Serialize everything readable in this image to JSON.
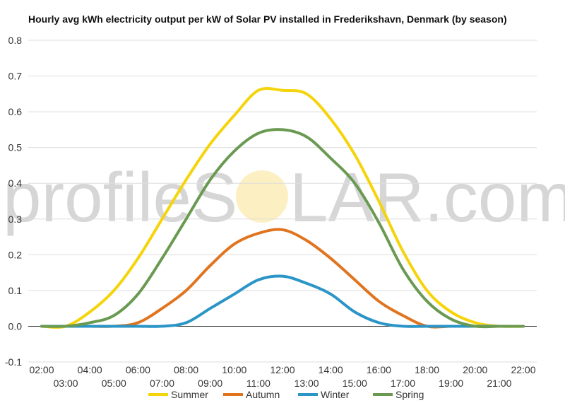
{
  "chart_data": {
    "type": "line",
    "title": "Hourly avg kWh electricity output per kW of Solar PV installed in Frederikshavn, Denmark (by season)",
    "xlabel": "",
    "ylabel": "",
    "ylim": [
      -0.1,
      0.8
    ],
    "yticks": [
      "-0.1",
      "0.0",
      "0.1",
      "0.2",
      "0.3",
      "0.4",
      "0.5",
      "0.6",
      "0.7",
      "0.8"
    ],
    "categories": [
      "02:00",
      "03:00",
      "04:00",
      "05:00",
      "06:00",
      "07:00",
      "08:00",
      "09:00",
      "10:00",
      "11:00",
      "12:00",
      "13:00",
      "14:00",
      "15:00",
      "16:00",
      "17:00",
      "18:00",
      "19:00",
      "20:00",
      "21:00",
      "22:00"
    ],
    "grid": true,
    "legend_position": "bottom",
    "series": [
      {
        "name": "Summer",
        "color": "#f5d40b",
        "values": [
          0,
          0,
          0.04,
          0.1,
          0.19,
          0.3,
          0.41,
          0.51,
          0.59,
          0.66,
          0.66,
          0.65,
          0.58,
          0.48,
          0.35,
          0.21,
          0.1,
          0.04,
          0.01,
          0,
          0
        ]
      },
      {
        "name": "Autumn",
        "color": "#e0741f",
        "values": [
          0,
          0,
          0,
          0,
          0.01,
          0.05,
          0.1,
          0.17,
          0.23,
          0.26,
          0.27,
          0.24,
          0.19,
          0.13,
          0.07,
          0.03,
          0,
          0,
          0,
          0,
          0
        ]
      },
      {
        "name": "Winter",
        "color": "#2a95c6",
        "values": [
          0,
          0,
          0,
          0,
          0,
          0,
          0.01,
          0.05,
          0.09,
          0.13,
          0.14,
          0.12,
          0.09,
          0.04,
          0.01,
          0,
          0,
          0,
          0,
          0,
          0
        ]
      },
      {
        "name": "Spring",
        "color": "#6a9a52",
        "values": [
          0,
          0,
          0.01,
          0.03,
          0.09,
          0.19,
          0.3,
          0.41,
          0.49,
          0.54,
          0.55,
          0.53,
          0.47,
          0.4,
          0.29,
          0.16,
          0.07,
          0.02,
          0,
          0,
          0
        ]
      }
    ]
  },
  "watermark": {
    "text_left": "profileS",
    "text_right": "LAR.com",
    "sun_color": "#fbe7a1"
  }
}
